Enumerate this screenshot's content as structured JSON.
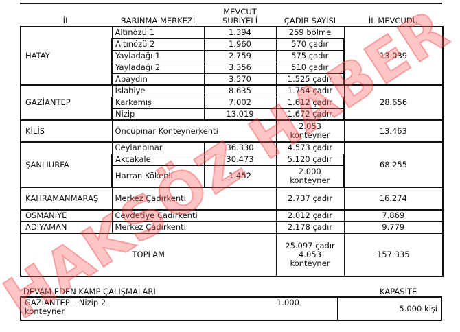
{
  "headers": {
    "il": "İL",
    "barinma": "BARINMA MERKEZİ",
    "mevcut": "MEVCUT SURİYELİ",
    "cadir": "ÇADIR SAYISI",
    "il_mevcudu": "İL MEVCUDU"
  },
  "provinces": [
    {
      "name": "HATAY",
      "total": "13.039",
      "centers": [
        {
          "name": "Altınözü 1",
          "count": "1.394",
          "tents": "259 bölme"
        },
        {
          "name": "Altınözü 2",
          "count": "1.960",
          "tents": "570 çadır"
        },
        {
          "name": "Yayladağı 1",
          "count": "2.759",
          "tents": "575 çadır"
        },
        {
          "name": "Yayladağı 2",
          "count": "3.356",
          "tents": "510 çadır"
        },
        {
          "name": "Apaydın",
          "count": "3.570",
          "tents": "1.525 çadır"
        }
      ]
    },
    {
      "name": "GAZİANTEP",
      "total": "28.656",
      "centers": [
        {
          "name": "İslahiye",
          "count": "8.635",
          "tents": "1.754 çadır"
        },
        {
          "name": "Karkamış",
          "count": "7.002",
          "tents": "1.612 çadır"
        },
        {
          "name": "Nizip",
          "count": "13.019",
          "tents": "1.672 çadır"
        }
      ]
    },
    {
      "name": "KİLİS",
      "total": "13.463",
      "centers": [
        {
          "name": "Öncüpınar Konteynerkenti",
          "tents": "2.053 konteyner"
        }
      ]
    },
    {
      "name": "ŞANLIURFA",
      "total": "68.255",
      "centers": [
        {
          "name": "Ceylanpınar",
          "count": "36.330",
          "tents": "4.573 çadır"
        },
        {
          "name": "Akçakale",
          "count": "30.473",
          "tents": "5.120 çadır"
        },
        {
          "name": "Harran Kökenli",
          "count": "1.452",
          "tents": "2.000 konteyner"
        }
      ]
    },
    {
      "name": "KAHRAMANMARAŞ",
      "total": "16.274",
      "centers": [
        {
          "name": "Merkez Çadırkenti",
          "tents": "2.737 çadır"
        }
      ]
    },
    {
      "name": "OSMANİYE",
      "total": "7.869",
      "centers": [
        {
          "name": "Cevdetiye Çadırkenti",
          "tents": "2.012 çadır"
        }
      ]
    },
    {
      "name": "ADIYAMAN",
      "total": "9.779",
      "centers": [
        {
          "name": "Merkez Çadırkenti",
          "tents": "2.178 çadır"
        }
      ]
    }
  ],
  "total": {
    "label": "TOPLAM",
    "tents": "25.097 çadır 4.053 konteyner",
    "people": "157.335"
  },
  "ongoing": {
    "title": "DEVAM EDEN KAMP ÇALIŞMALARI",
    "capacity_label": "KAPASİTE",
    "item": "GAZİANTEP  – Nizip 2 konteyner",
    "count": "1.000",
    "capacity": "5.000 kişi"
  },
  "watermark": "HAKSÖZ HABER"
}
